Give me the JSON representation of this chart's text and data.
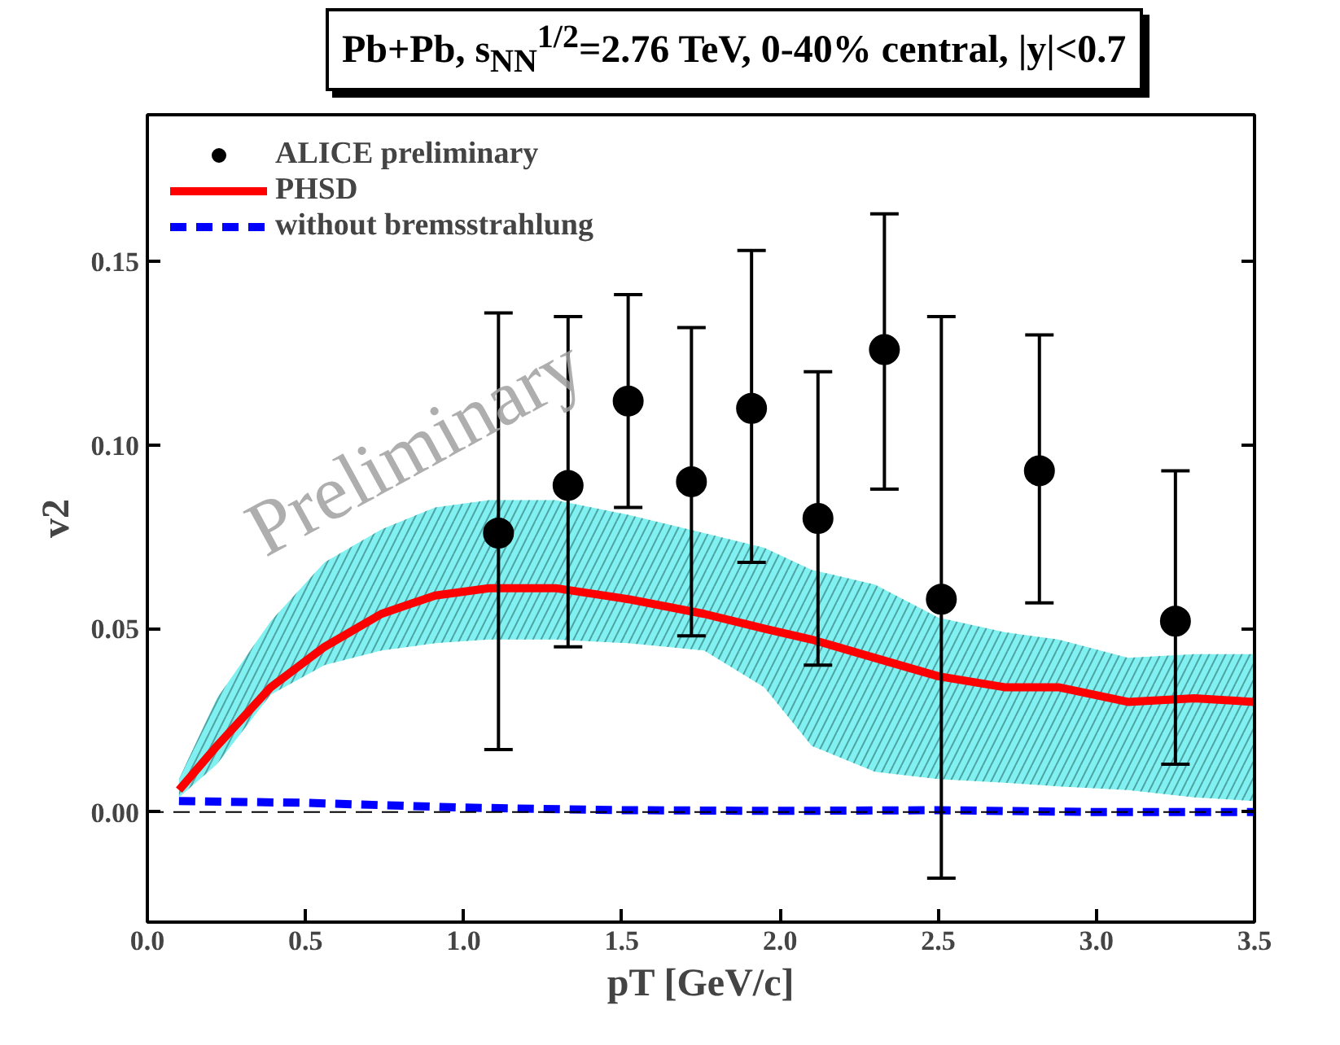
{
  "chart_data": {
    "type": "scatter",
    "title": "Pb+Pb, s$_{NN}$$^{1/2}$=2.76 TeV, 0-40% central, |y|<0.7",
    "xlabel": "pT [GeV/c]",
    "ylabel": "v2",
    "annotations": [
      "Preliminary"
    ],
    "xlim": [
      0,
      3.5
    ],
    "ylim": [
      -0.03,
      0.19
    ],
    "xticks": [
      {
        "value": 0,
        "label": "0.0"
      },
      0.5,
      {
        "value": 1,
        "label": "1.0"
      },
      1.5,
      {
        "value": 2,
        "label": "2.0"
      },
      2.5,
      {
        "value": 3,
        "label": "3.0"
      },
      3.5
    ],
    "yticks": [
      {
        "value": 0,
        "label": "0.00"
      },
      0.05,
      {
        "value": 0.1,
        "label": "0.10"
      },
      0.15
    ],
    "grid": false,
    "legend": "top left",
    "ref_lines": [
      {
        "axis": "y",
        "value": 0,
        "color": "#000000",
        "line_style": "dashed"
      }
    ],
    "series": [
      {
        "name": "ALICE preliminary",
        "marker": "circle",
        "color": "#000000",
        "x": [
          1.11,
          1.33,
          1.52,
          1.72,
          1.91,
          2.12,
          2.33,
          2.51,
          2.82,
          3.25
        ],
        "values": [
          0.076,
          0.089,
          0.112,
          0.09,
          0.11,
          0.08,
          0.126,
          0.058,
          0.093,
          0.052
        ],
        "errors": [
          [
            0.017,
            0.136
          ],
          [
            0.045,
            0.135
          ],
          [
            0.083,
            0.141
          ],
          [
            0.048,
            0.132
          ],
          [
            0.068,
            0.153
          ],
          [
            0.04,
            0.12
          ],
          [
            0.088,
            0.163
          ],
          [
            -0.018,
            0.135
          ],
          [
            0.057,
            0.13
          ],
          [
            0.013,
            0.093
          ]
        ]
      },
      {
        "name": "PHSD",
        "type": "line",
        "line_style": "solid",
        "color": "#ff0000",
        "x": [
          0.1,
          0.22,
          0.39,
          0.56,
          0.74,
          0.91,
          1.08,
          1.29,
          1.52,
          1.76,
          1.95,
          2.1,
          2.3,
          2.5,
          2.71,
          2.88,
          3.1,
          3.31,
          3.5
        ],
        "values": [
          0.006,
          0.018,
          0.034,
          0.045,
          0.054,
          0.059,
          0.061,
          0.061,
          0.058,
          0.054,
          0.05,
          0.047,
          0.042,
          0.037,
          0.034,
          0.034,
          0.03,
          0.031,
          0.03
        ],
        "lower": [
          0.004,
          0.013,
          0.032,
          0.04,
          0.044,
          0.046,
          0.047,
          0.047,
          0.046,
          0.044,
          0.034,
          0.018,
          0.011,
          0.009,
          0.008,
          0.007,
          0.006,
          0.004,
          0.003
        ],
        "upper": [
          0.009,
          0.031,
          0.052,
          0.068,
          0.077,
          0.083,
          0.085,
          0.085,
          0.081,
          0.076,
          0.072,
          0.066,
          0.062,
          0.053,
          0.049,
          0.047,
          0.042,
          0.043,
          0.043
        ]
      },
      {
        "name": "without bremsstrahlung",
        "type": "line",
        "line_style": "dashed",
        "color": "#0000ff",
        "x": [
          0.1,
          0.5,
          1.0,
          1.5,
          2.0,
          2.5,
          3.0,
          3.5
        ],
        "values": [
          0.003,
          0.0025,
          0.0012,
          0.0005,
          0.0003,
          0.0005,
          0,
          0
        ]
      }
    ]
  }
}
